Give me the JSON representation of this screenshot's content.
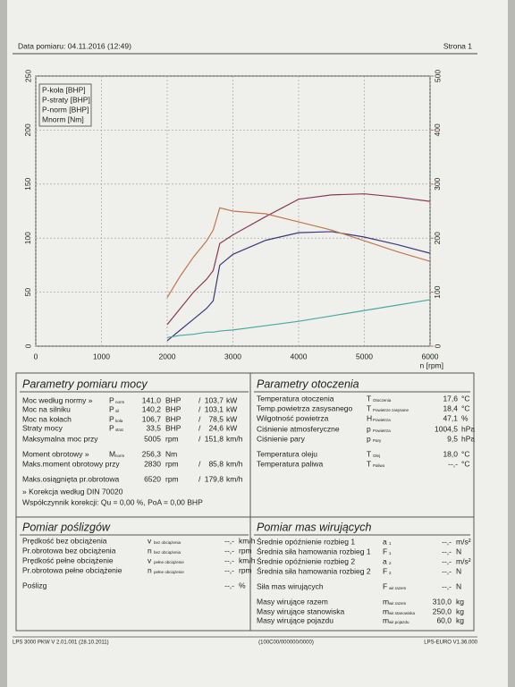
{
  "header": {
    "date": "Data pomiaru: 04.11.2016 (12:49)",
    "page": "Strona 1"
  },
  "chart_data": {
    "type": "line",
    "xlabel": "n [rpm]",
    "x": [
      2000,
      2200,
      2400,
      2600,
      2700,
      2800,
      3000,
      3500,
      4000,
      4500,
      5000,
      5500,
      6000
    ],
    "series": [
      {
        "name": "P-koła [BHP]",
        "color": "#3a3a7a",
        "values": [
          5,
          15,
          25,
          35,
          42,
          75,
          85,
          98,
          105,
          106,
          101,
          94,
          86
        ]
      },
      {
        "name": "P-straty [BHP]",
        "color": "#4aa8a0",
        "values": [
          8,
          10,
          11,
          13,
          13,
          14,
          15,
          19,
          23,
          28,
          33,
          38,
          43
        ]
      },
      {
        "name": "P-norm [BHP]",
        "color": "#8a3a5a",
        "values": [
          20,
          35,
          50,
          62,
          70,
          95,
          103,
          120,
          136,
          140,
          141,
          138,
          134
        ]
      },
      {
        "name": "Mnorm [Nm]",
        "color": "#c07850",
        "axis": "y2",
        "values": [
          90,
          130,
          165,
          195,
          215,
          256,
          250,
          245,
          230,
          215,
          195,
          175,
          157
        ]
      }
    ],
    "xlim": [
      0,
      6000
    ],
    "xticks": [
      0,
      1000,
      2000,
      3000,
      4000,
      5000,
      6000
    ],
    "ylim": [
      0,
      250
    ],
    "yticks": [
      0,
      50,
      100,
      150,
      200,
      250
    ],
    "y2lim": [
      0,
      500
    ],
    "y2ticks": [
      0,
      100,
      200,
      300,
      400,
      500
    ],
    "grid": true,
    "legend": "upper left"
  },
  "sections": [
    {
      "title": "Parametry pomiaru mocy",
      "color": "#9a2a2a",
      "rows": [
        {
          "label": "Moc według normy »",
          "color": "#b03030",
          "symbol": "P",
          "sub": "norm",
          "value": "141,0",
          "unit": "BHP",
          "sep": "/",
          "value2": "103,7",
          "unit2": "kW"
        },
        {
          "label": "Moc na silniku",
          "color": "#b03030",
          "symbol": "P",
          "sub": "sil",
          "value": "140,2",
          "unit": "BHP",
          "sep": "/",
          "value2": "103,1",
          "unit2": "kW"
        },
        {
          "label": "Moc na kołach",
          "symbol": "P",
          "sub": "koła",
          "value": "106,7",
          "unit": "BHP",
          "sep": "/",
          "value2": "78,5",
          "unit2": "kW"
        },
        {
          "label": "Straty mocy",
          "color": "#4aa8a0",
          "symbol": "P",
          "sub": "strat",
          "value": "33,5",
          "unit": "BHP",
          "sep": "/",
          "value2": "24,6",
          "unit2": "kW"
        },
        {
          "label": "Maksymalna moc przy",
          "value": "5005",
          "unit": "rpm",
          "sep": "/",
          "value2": "151,8",
          "unit2": "km/h"
        },
        {
          "label": "Moment obrotowy »",
          "color": "#b03030",
          "symbol": "M",
          "sub": "norm",
          "value": "256,3",
          "unit": "Nm"
        },
        {
          "label": "Maks.moment obrotowy przy",
          "value": "2830",
          "unit": "rpm",
          "sep": "/",
          "value2": "85,8",
          "unit2": "km/h"
        },
        {
          "label": "Maks.osiągnięta pr.obrotowa",
          "value": "6520",
          "unit": "rpm",
          "sep": "/",
          "value2": "179,8",
          "unit2": "km/h"
        },
        {
          "label": "» Korekcja według DIN 70020",
          "color": "#9a2a2a"
        },
        {
          "label": "Współczynnik korekcji: Qu = 0,00 %, PoA = 0,00 BHP"
        }
      ]
    },
    {
      "title": "Parametry otoczenia",
      "rows": [
        {
          "label": "Temperatura otoczenia",
          "symbol": "T",
          "sub": "Otoczenia",
          "value": "17,6",
          "unit": "°C"
        },
        {
          "label": "Temp.powietrza zasysanego",
          "symbol": "T",
          "sub": "Powietrze zasysane",
          "value": "18,4",
          "unit": "°C"
        },
        {
          "label": "Wilgotność powietrza",
          "symbol": "H",
          "sub": "Powietrza",
          "value": "47,1",
          "unit": "%"
        },
        {
          "label": "Ciśnienie atmosferyczne",
          "symbol": "p",
          "sub": "Powietrza",
          "value": "1004,5",
          "unit": "hPa"
        },
        {
          "label": "Ciśnienie pary",
          "symbol": "p",
          "sub": "Pary",
          "value": "9,5",
          "unit": "hPa"
        },
        {
          "label": "Temperatura oleju",
          "symbol": "T",
          "sub": "Olej",
          "value": "18,0",
          "unit": "°C"
        },
        {
          "label": "Temperatura paliwa",
          "symbol": "T",
          "sub": "Paliwo",
          "value": "--,-",
          "unit": "°C"
        }
      ]
    },
    {
      "title": "Pomiar poślizgów",
      "rows": [
        {
          "label": "Prędkość bez obciążenia",
          "symbol": "v",
          "sub": "bez obciążenia",
          "value": "--,-",
          "unit": "km/h"
        },
        {
          "label": "Pr.obrotowa bez obciążenia",
          "symbol": "n",
          "sub": "bez obciążenia",
          "value": "--,-",
          "unit": "rpm"
        },
        {
          "label": "Prędkość pełne obciążenie",
          "symbol": "v",
          "sub": "pełne obciążenie",
          "value": "--,-",
          "unit": "km/h"
        },
        {
          "label": "Pr.obrotowa pełne obciążenie",
          "symbol": "n",
          "sub": "pełne obciążenie",
          "value": "--,-",
          "unit": "rpm"
        },
        {
          "label": "Poślizg",
          "value": "--,-",
          "unit": "%"
        }
      ]
    },
    {
      "title": "Pomiar mas wirujących",
      "rows": [
        {
          "label": "Średnie opóźnienie rozbieg 1",
          "symbol": "a",
          "sub": "1",
          "value": "--,-",
          "unit": "m/s²"
        },
        {
          "label": "Średnia siła hamowania rozbieg 1",
          "symbol": "F",
          "sub": "1",
          "value": "--,-",
          "unit": "N"
        },
        {
          "label": "Średnie opóźnienie rozbieg 2",
          "symbol": "a",
          "sub": "2",
          "value": "--,-",
          "unit": "m/s²"
        },
        {
          "label": "Średnia siła hamowania rozbieg 2",
          "symbol": "F",
          "sub": "2",
          "value": "--,-",
          "unit": "N"
        },
        {
          "label": "Siła mas wirujących",
          "symbol": "F",
          "sub": "wir.razem",
          "value": "--,-",
          "unit": "N"
        },
        {
          "label": "Masy wirujące razem",
          "symbol": "m",
          "sub": "wir.razem",
          "value": "310,0",
          "unit": "kg"
        },
        {
          "label": "Masy wirujące stanowiska",
          "symbol": "m",
          "sub": "wir.stanowiska",
          "value": "250,0",
          "unit": "kg"
        },
        {
          "label": "Masy wirujące pojazdu",
          "symbol": "m",
          "sub": "wir.pojazdu",
          "value": "60,0",
          "unit": "kg"
        }
      ]
    }
  ],
  "footer": {
    "left": "LPS 3000 PKW V 2.01.001 (28.10.2011)",
    "center": "(100C00/000000/0000)",
    "right": "LPS-EURO V1.36.000"
  }
}
